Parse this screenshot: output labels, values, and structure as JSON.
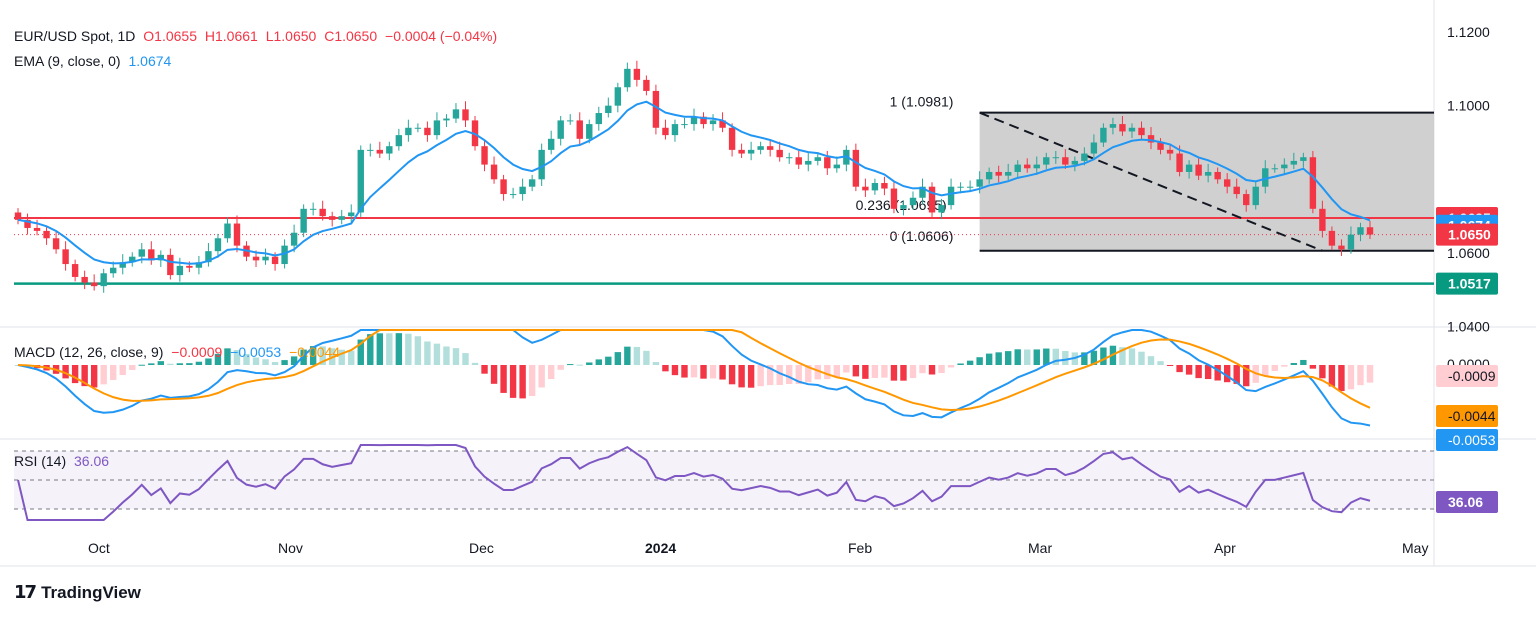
{
  "header": {
    "symbol": "EUR/USD Spot, 1D",
    "open": "O1.0655",
    "high": "H1.0661",
    "low": "L1.0650",
    "close": "C1.0650",
    "change": "−0.0004 (−0.04%)"
  },
  "ema_legend": {
    "name": "EMA (9, close, 0)",
    "value": "1.0674"
  },
  "macd_legend": {
    "name": "MACD (12, 26, close, 9)",
    "hist": "−0.0009",
    "macd": "−0.0053",
    "signal": "−0.0044"
  },
  "rsi_legend": {
    "name": "RSI (14)",
    "value": "36.06"
  },
  "fib": {
    "one": "1 (1.0981)",
    "mid": "0.236 (1.0695)",
    "zero": "0 (1.0606)"
  },
  "brand": {
    "name": "TradingView"
  },
  "colors": {
    "up": "#26a69a",
    "down": "#f23645",
    "ema": "#2196f3",
    "signal": "#ff9800",
    "rsi": "#7e57c2",
    "support": "#089981",
    "fib_box": "#c8c8c8"
  },
  "chart_data": {
    "type": "candlestick",
    "price_axis": {
      "ticks": [
        "1.1200",
        "1.1000",
        "1.0600",
        "1.0400"
      ],
      "ylim": [
        1.04,
        1.12
      ]
    },
    "price_labels": [
      {
        "text": "1.0695",
        "color": "#f23645"
      },
      {
        "text": "1.0674",
        "color": "#2196f3"
      },
      {
        "text": "1.0650",
        "color": "#f23645"
      },
      {
        "text": "1.0517",
        "color": "#089981"
      }
    ],
    "horizontal_lines": {
      "resistance": 1.0695,
      "support": 1.0517,
      "last": 1.065
    },
    "fib_levels": {
      "top": 1.0981,
      "mid": 1.0695,
      "bottom": 1.0606
    },
    "macd_axis": {
      "ticks": [
        "0.0000"
      ],
      "labels": [
        "-0.0009",
        "-0.0044",
        "-0.0053"
      ]
    },
    "rsi_axis": {
      "labels": [
        "36.06"
      ]
    },
    "x_labels": [
      "Oct",
      "Nov",
      "Dec",
      "2024",
      "Feb",
      "Mar",
      "Apr",
      "May"
    ],
    "closes": [
      1.069,
      1.0668,
      1.066,
      1.064,
      1.061,
      1.057,
      1.0535,
      1.052,
      1.051,
      1.0545,
      1.056,
      1.0575,
      1.059,
      1.061,
      1.058,
      1.0595,
      1.054,
      1.0565,
      1.056,
      1.0575,
      1.0605,
      1.064,
      1.068,
      1.062,
      1.059,
      1.058,
      1.059,
      1.057,
      1.062,
      1.0655,
      1.072,
      1.072,
      1.07,
      1.069,
      1.07,
      1.071,
      1.088,
      1.088,
      1.087,
      1.089,
      1.092,
      1.094,
      1.094,
      1.092,
      1.096,
      1.0965,
      1.099,
      1.096,
      1.089,
      1.084,
      1.08,
      1.076,
      1.076,
      1.078,
      1.08,
      1.088,
      1.091,
      1.096,
      1.096,
      1.091,
      1.095,
      1.098,
      1.1,
      1.105,
      1.11,
      1.107,
      1.104,
      1.094,
      1.092,
      1.095,
      1.095,
      1.097,
      1.095,
      1.096,
      1.094,
      1.088,
      1.087,
      1.088,
      1.089,
      1.088,
      1.086,
      1.086,
      1.084,
      1.085,
      1.086,
      1.083,
      1.084,
      1.088,
      1.078,
      1.077,
      1.079,
      1.0775,
      1.072,
      1.073,
      1.075,
      1.078,
      1.071,
      1.073,
      1.078,
      1.078,
      1.078,
      1.08,
      1.082,
      1.081,
      1.082,
      1.084,
      1.083,
      1.084,
      1.086,
      1.086,
      1.084,
      1.085,
      1.087,
      1.09,
      1.094,
      1.095,
      1.093,
      1.094,
      1.092,
      1.09,
      1.088,
      1.087,
      1.082,
      1.084,
      1.081,
      1.082,
      1.08,
      1.078,
      1.076,
      1.073,
      1.078,
      1.083,
      1.083,
      1.084,
      1.085,
      1.086,
      1.072,
      1.066,
      1.062,
      1.061,
      1.065,
      1.067,
      1.065
    ]
  }
}
